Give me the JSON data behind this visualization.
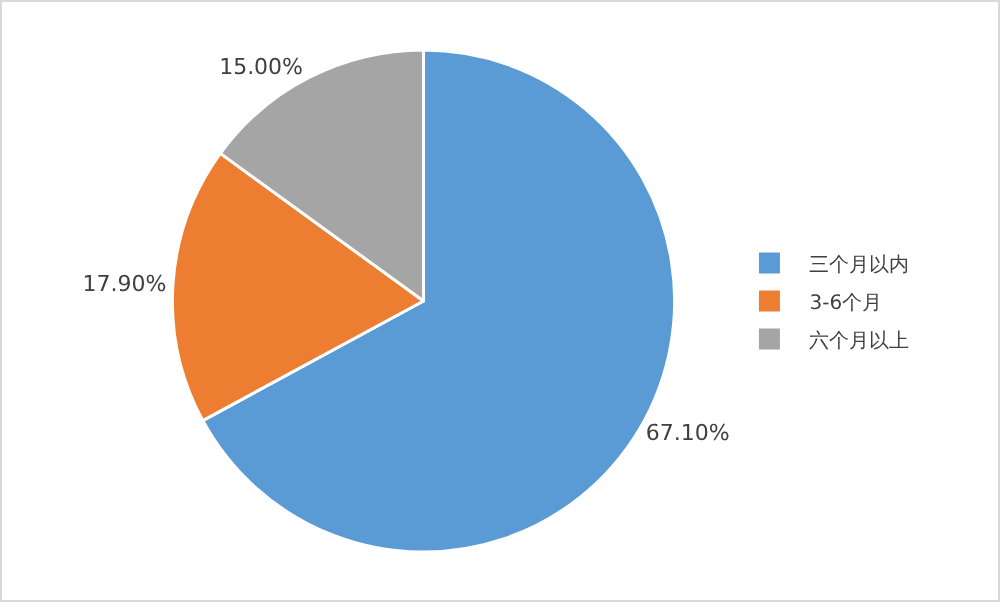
{
  "chart_data": {
    "type": "pie",
    "categories": [
      "三个月以内",
      "3-6个月",
      "六个月以上"
    ],
    "values": [
      67.1,
      17.9,
      15.0
    ],
    "colors": [
      "#5b9bd5",
      "#ed7d31",
      "#a5a5a5"
    ],
    "value_labels": [
      "67.10%",
      "17.90%",
      "15.00%"
    ],
    "legend": "right"
  }
}
